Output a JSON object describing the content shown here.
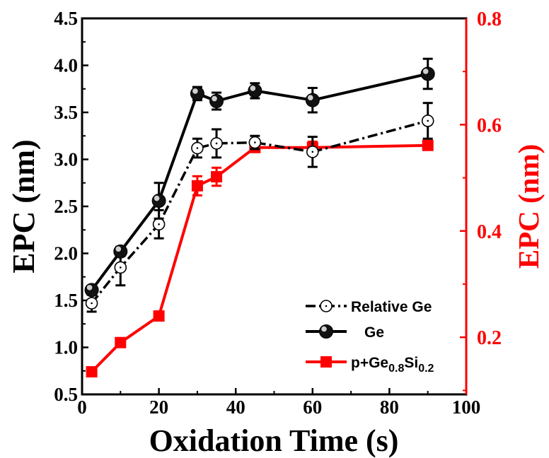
{
  "chart_data": {
    "type": "line",
    "xlabel": "Oxidation Time (s)",
    "ylabel_left": "EPC (nm)",
    "ylabel_right": "EPC (nm)",
    "xlim": [
      0,
      100
    ],
    "ylim_left": [
      0.5,
      4.5
    ],
    "ylim_right": [
      0.0925,
      0.8
    ],
    "x_ticks": [
      0,
      20,
      40,
      60,
      80,
      100
    ],
    "y_left_ticks": [
      "0.5",
      "1.0",
      "1.5",
      "2.0",
      "2.5",
      "3.0",
      "3.5",
      "4.0",
      "4.5"
    ],
    "y_right_ticks": [
      "0.2",
      "0.4",
      "0.6",
      "0.8"
    ],
    "grid": false,
    "legend_position": "bottom-right",
    "series": [
      {
        "name": "Relative Ge",
        "axis": "left",
        "marker": "open-circle",
        "line_style": "dash-dot",
        "color": "#000000",
        "x": [
          2.5,
          10,
          20,
          30,
          35,
          45,
          60,
          90
        ],
        "y": [
          1.47,
          1.85,
          2.31,
          3.12,
          3.17,
          3.18,
          3.08,
          3.41
        ],
        "err": [
          0.09,
          0.19,
          0.15,
          0.1,
          0.15,
          0.07,
          0.16,
          0.19
        ]
      },
      {
        "name": "Ge",
        "axis": "left",
        "marker": "solid-sphere",
        "line_style": "solid",
        "color": "#000000",
        "x": [
          2.5,
          10,
          20,
          30,
          35,
          45,
          60,
          90
        ],
        "y": [
          1.61,
          2.02,
          2.56,
          3.7,
          3.62,
          3.73,
          3.63,
          3.91
        ],
        "err": [
          0.04,
          0.05,
          0.19,
          0.07,
          0.09,
          0.08,
          0.13,
          0.16
        ]
      },
      {
        "name": "p+Ge0.8Si0.2",
        "axis": "right",
        "marker": "square",
        "line_style": "solid",
        "color": "#ff0000",
        "x": [
          2.5,
          10,
          20,
          30,
          35,
          45,
          60,
          90
        ],
        "y": [
          0.135,
          0.19,
          0.24,
          0.485,
          0.502,
          0.557,
          0.557,
          0.561
        ],
        "err": [
          0.005,
          0.005,
          0.004,
          0.018,
          0.017,
          0.008,
          0.011,
          0.005
        ]
      }
    ],
    "legend_labels": [
      {
        "main": "Relative Ge"
      },
      {
        "main": "Ge"
      },
      {
        "main": "p+Ge",
        "sub1": "0.8",
        "mid": "Si",
        "sub2": "0.2"
      }
    ]
  }
}
